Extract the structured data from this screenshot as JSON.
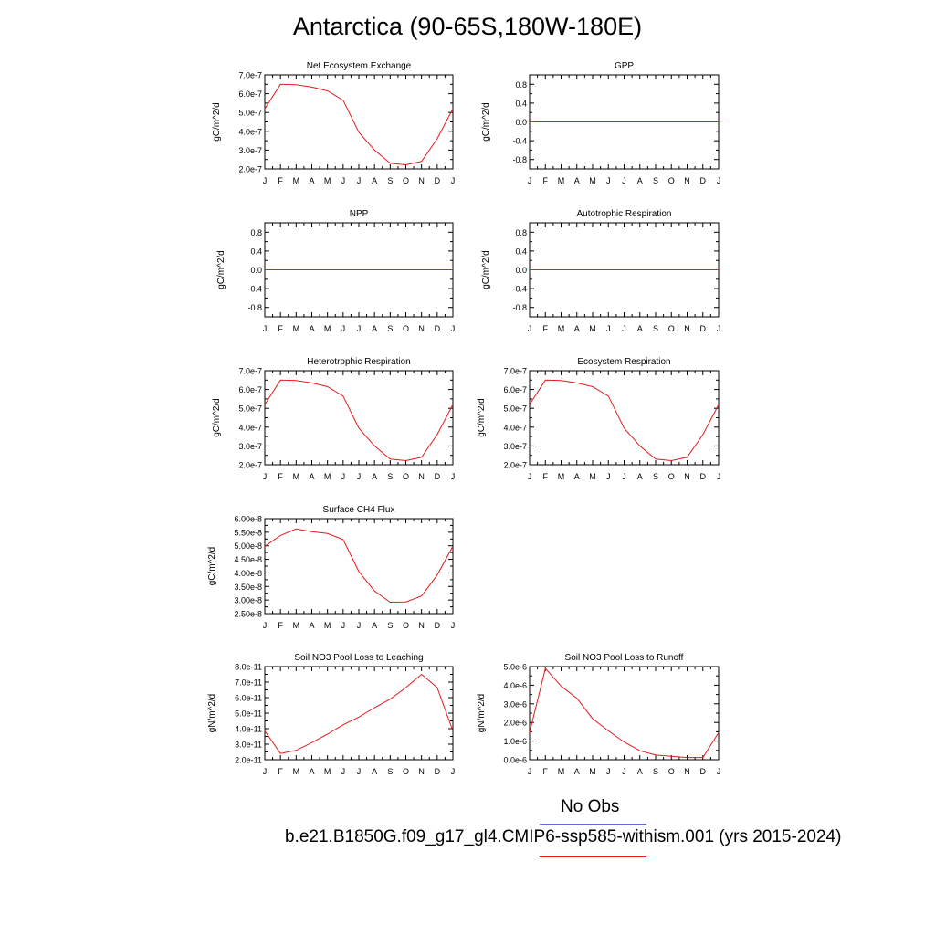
{
  "title": "Antarctica (90-65S,180W-180E)",
  "colors": {
    "model": "#e41a1c",
    "obs": "#5b6df0",
    "axis": "#000000"
  },
  "legend": {
    "obs_label": "No Obs",
    "case_label": "b.e21.B1850G.f09_g17_gl4.CMIP6-ssp585-withism.001 (yrs 2015-2024)"
  },
  "chart_data": [
    {
      "type": "line",
      "title": "Net Ecosystem Exchange",
      "xlabel": "",
      "ylabel": "gC/m^2/d",
      "categories": [
        "J",
        "F",
        "M",
        "A",
        "M",
        "J",
        "J",
        "A",
        "S",
        "O",
        "N",
        "D",
        "J"
      ],
      "yticks": [
        "2.0e-7",
        "3.0e-7",
        "4.0e-7",
        "5.0e-7",
        "6.0e-7",
        "7.0e-7"
      ],
      "ylim": [
        2e-07,
        7e-07
      ],
      "series": [
        {
          "values": [
            5.2e-07,
            6.5e-07,
            6.48e-07,
            6.35e-07,
            6.15e-07,
            5.65e-07,
            3.95e-07,
            3e-07,
            2.3e-07,
            2.22e-07,
            2.4e-07,
            3.6e-07,
            5.2e-07
          ]
        }
      ]
    },
    {
      "type": "line",
      "title": "GPP",
      "xlabel": "",
      "ylabel": "gC/m^2/d",
      "categories": [
        "J",
        "F",
        "M",
        "A",
        "M",
        "J",
        "J",
        "A",
        "S",
        "O",
        "N",
        "D",
        "J"
      ],
      "yticks": [
        "-0.8",
        "-0.4",
        "0.0",
        "0.4",
        "0.8"
      ],
      "ylim": [
        -1.0,
        1.0
      ],
      "series": [
        {
          "values": [
            0,
            0,
            0,
            0,
            0,
            0,
            0,
            0,
            0,
            0,
            0,
            0,
            0
          ]
        }
      ]
    },
    {
      "type": "line",
      "title": "NPP",
      "xlabel": "",
      "ylabel": "gC/m^2/d",
      "categories": [
        "J",
        "F",
        "M",
        "A",
        "M",
        "J",
        "J",
        "A",
        "S",
        "O",
        "N",
        "D",
        "J"
      ],
      "yticks": [
        "-0.8",
        "-0.4",
        "0.0",
        "0.4",
        "0.8"
      ],
      "ylim": [
        -1.0,
        1.0
      ],
      "series": [
        {
          "values": [
            0,
            0,
            0,
            0,
            0,
            0,
            0,
            0,
            0,
            0,
            0,
            0,
            0
          ]
        }
      ]
    },
    {
      "type": "line",
      "title": "Autotrophic Respiration",
      "xlabel": "",
      "ylabel": "gC/m^2/d",
      "categories": [
        "J",
        "F",
        "M",
        "A",
        "M",
        "J",
        "J",
        "A",
        "S",
        "O",
        "N",
        "D",
        "J"
      ],
      "yticks": [
        "-0.8",
        "-0.4",
        "0.0",
        "0.4",
        "0.8"
      ],
      "ylim": [
        -1.0,
        1.0
      ],
      "series": [
        {
          "values": [
            0,
            0,
            0,
            0,
            0,
            0,
            0,
            0,
            0,
            0,
            0,
            0,
            0
          ]
        }
      ]
    },
    {
      "type": "line",
      "title": "Heterotrophic Respiration",
      "xlabel": "",
      "ylabel": "gC/m^2/d",
      "categories": [
        "J",
        "F",
        "M",
        "A",
        "M",
        "J",
        "J",
        "A",
        "S",
        "O",
        "N",
        "D",
        "J"
      ],
      "yticks": [
        "2.0e-7",
        "3.0e-7",
        "4.0e-7",
        "5.0e-7",
        "6.0e-7",
        "7.0e-7"
      ],
      "ylim": [
        2e-07,
        7e-07
      ],
      "series": [
        {
          "values": [
            5.2e-07,
            6.5e-07,
            6.48e-07,
            6.35e-07,
            6.15e-07,
            5.65e-07,
            3.95e-07,
            3e-07,
            2.3e-07,
            2.22e-07,
            2.4e-07,
            3.6e-07,
            5.2e-07
          ]
        }
      ]
    },
    {
      "type": "line",
      "title": "Ecosystem Respiration",
      "xlabel": "",
      "ylabel": "gC/m^2/d",
      "categories": [
        "J",
        "F",
        "M",
        "A",
        "M",
        "J",
        "J",
        "A",
        "S",
        "O",
        "N",
        "D",
        "J"
      ],
      "yticks": [
        "2.0e-7",
        "3.0e-7",
        "4.0e-7",
        "5.0e-7",
        "6.0e-7",
        "7.0e-7"
      ],
      "ylim": [
        2e-07,
        7e-07
      ],
      "series": [
        {
          "values": [
            5.2e-07,
            6.5e-07,
            6.48e-07,
            6.35e-07,
            6.15e-07,
            5.65e-07,
            3.95e-07,
            3e-07,
            2.3e-07,
            2.22e-07,
            2.4e-07,
            3.6e-07,
            5.2e-07
          ]
        }
      ]
    },
    {
      "type": "line",
      "title": "Surface CH4 Flux",
      "xlabel": "",
      "ylabel": "gC/m^2/d",
      "categories": [
        "J",
        "F",
        "M",
        "A",
        "M",
        "J",
        "J",
        "A",
        "S",
        "O",
        "N",
        "D",
        "J"
      ],
      "yticks": [
        "2.50e-8",
        "3.00e-8",
        "3.50e-8",
        "4.00e-8",
        "4.50e-8",
        "5.00e-8",
        "5.50e-8",
        "6.00e-8"
      ],
      "ylim": [
        2.5e-08,
        6e-08
      ],
      "series": [
        {
          "values": [
            4.98e-08,
            5.38e-08,
            5.62e-08,
            5.52e-08,
            5.45e-08,
            5.23e-08,
            4.05e-08,
            3.33e-08,
            2.92e-08,
            2.93e-08,
            3.15e-08,
            3.92e-08,
            4.98e-08
          ]
        }
      ]
    },
    {
      "type": "line",
      "title": "Soil NO3 Pool Loss to Leaching",
      "xlabel": "",
      "ylabel": "gN/m^2/d",
      "categories": [
        "J",
        "F",
        "M",
        "A",
        "M",
        "J",
        "J",
        "A",
        "S",
        "O",
        "N",
        "D",
        "J"
      ],
      "yticks": [
        "2.0e-11",
        "3.0e-11",
        "4.0e-11",
        "5.0e-11",
        "6.0e-11",
        "7.0e-11",
        "8.0e-11"
      ],
      "ylim": [
        2e-11,
        8e-11
      ],
      "series": [
        {
          "values": [
            3.85e-11,
            2.4e-11,
            2.6e-11,
            3.1e-11,
            3.65e-11,
            4.25e-11,
            4.75e-11,
            5.35e-11,
            5.9e-11,
            6.65e-11,
            7.5e-11,
            6.65e-11,
            3.85e-11
          ]
        }
      ]
    },
    {
      "type": "line",
      "title": "Soil NO3 Pool Loss to Runoff",
      "xlabel": "",
      "ylabel": "gN/m^2/d",
      "categories": [
        "J",
        "F",
        "M",
        "A",
        "M",
        "J",
        "J",
        "A",
        "S",
        "O",
        "N",
        "D",
        "J"
      ],
      "yticks": [
        "0.0e-6",
        "1.0e-6",
        "2.0e-6",
        "3.0e-6",
        "4.0e-6",
        "5.0e-6"
      ],
      "ylim": [
        0.0,
        5e-06
      ],
      "series": [
        {
          "values": [
            1.45e-06,
            4.9e-06,
            3.95e-06,
            3.3e-06,
            2.2e-06,
            1.55e-06,
            9.5e-07,
            4.8e-07,
            2.5e-07,
            1.8e-07,
            1.2e-07,
            1.2e-07,
            1.45e-06
          ]
        }
      ]
    }
  ]
}
